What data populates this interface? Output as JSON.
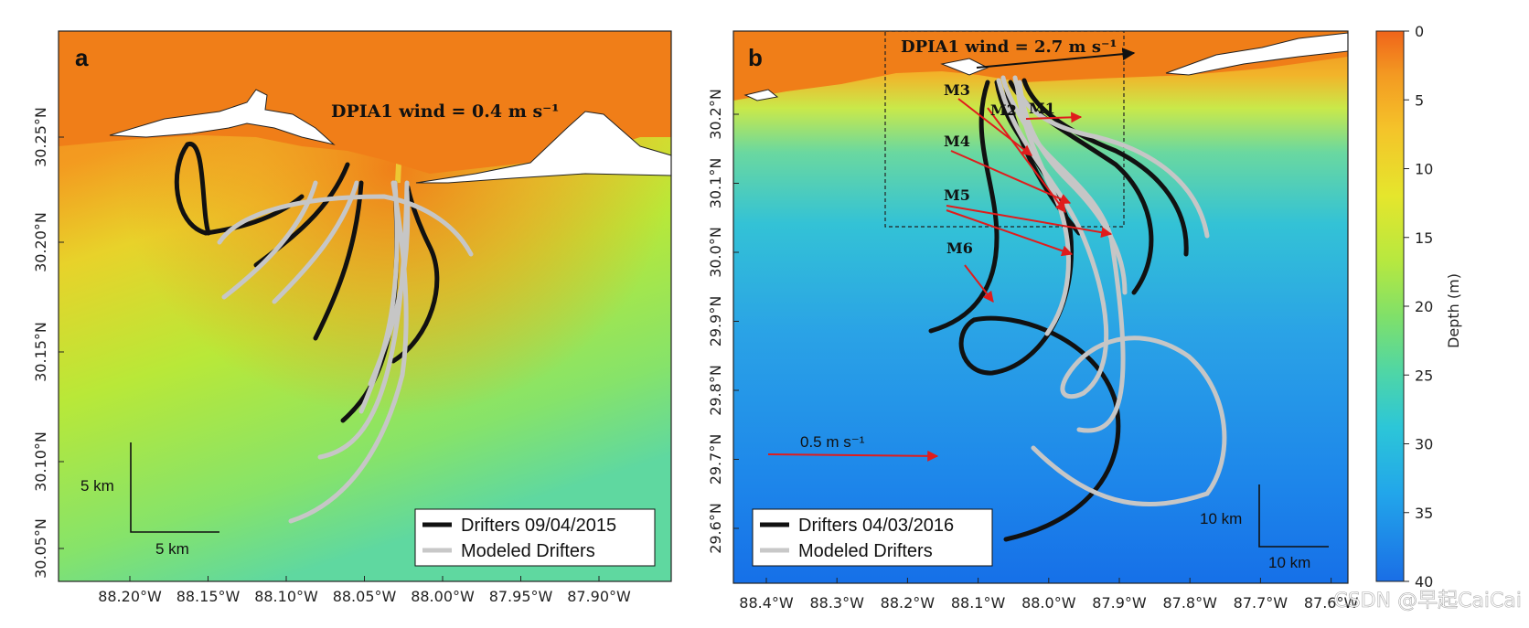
{
  "panel_a": {
    "letter": "a",
    "wind_label": "DPIA1 wind = 0.4 m s⁻¹",
    "lon_ticks": [
      "88.20°W",
      "88.15°W",
      "88.10°W",
      "88.05°W",
      "88.00°W",
      "87.95°W",
      "87.90°W"
    ],
    "lat_ticks": [
      "30.25°N",
      "30.20°N",
      "30.15°N",
      "30.10°N",
      "30.05°N"
    ],
    "scale_v": "5 km",
    "scale_h": "5 km",
    "legend": [
      {
        "label": "Drifters 09/04/2015",
        "color": "#111111"
      },
      {
        "label": "Modeled Drifters",
        "color": "#c8c8c8"
      }
    ]
  },
  "panel_b": {
    "letter": "b",
    "wind_label": "DPIA1 wind = 2.7 m s⁻¹",
    "lon_ticks": [
      "88.4°W",
      "88.3°W",
      "88.2°W",
      "88.1°W",
      "88.0°W",
      "87.9°W",
      "87.8°W",
      "87.7°W",
      "87.6°W"
    ],
    "lat_ticks": [
      "30.2°N",
      "30.1°N",
      "30.0°N",
      "29.9°N",
      "29.8°N",
      "29.7°N",
      "29.6°N"
    ],
    "mooring_labels": [
      "M3",
      "M2",
      "M1",
      "M4",
      "M5",
      "M6"
    ],
    "velocity_scale": "0.5 m s⁻¹",
    "scale_v": "10 km",
    "scale_h": "10 km",
    "legend": [
      {
        "label": "Drifters 04/03/2016",
        "color": "#111111"
      },
      {
        "label": "Modeled Drifters",
        "color": "#c8c8c8"
      }
    ]
  },
  "colorbar": {
    "label": "Depth (m)",
    "ticks": [
      "0",
      "5",
      "10",
      "15",
      "20",
      "25",
      "30",
      "35",
      "40"
    ],
    "range": [
      0,
      40
    ]
  },
  "watermark": "CSDN @早起CaiCai"
}
